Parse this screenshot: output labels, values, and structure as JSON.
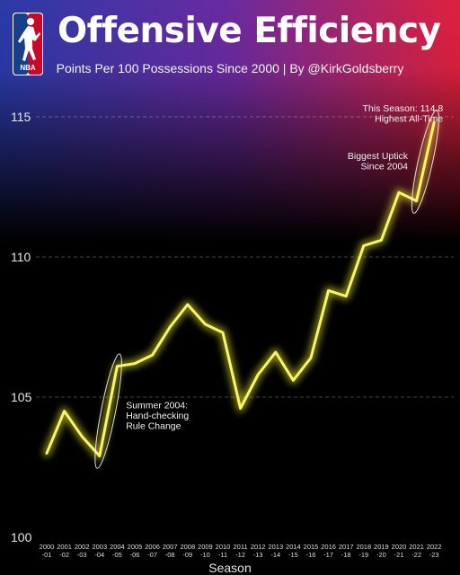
{
  "header": {
    "logo_text": "NBA",
    "title": "Offensive Efficiency",
    "subtitle": "Points Per 100 Possessions Since 2000 | By @KirkGoldsberry"
  },
  "colors": {
    "line": "#f7f56a",
    "glow": "#ecea2c",
    "gradient_left": "#2a3aa8",
    "gradient_mid": "#6a2aa0",
    "gradient_right": "#e0203c",
    "logo_blue": "#17408b",
    "logo_red": "#c9082a"
  },
  "chart_data": {
    "type": "line",
    "xlabel": "Season",
    "ylabel": "",
    "ylim": [
      100,
      115.5
    ],
    "yticks": [
      100,
      105,
      110,
      115
    ],
    "grid": "dashed horizontal at 105, 110, 115",
    "categories": [
      [
        "2000",
        "-01"
      ],
      [
        "2001",
        "-02"
      ],
      [
        "2002",
        "-03"
      ],
      [
        "2003",
        "-04"
      ],
      [
        "2004",
        "-05"
      ],
      [
        "2005",
        "-06"
      ],
      [
        "2006",
        "-07"
      ],
      [
        "2007",
        "-08"
      ],
      [
        "2008",
        "-09"
      ],
      [
        "2009",
        "-10"
      ],
      [
        "2010",
        "-11"
      ],
      [
        "2011",
        "-12"
      ],
      [
        "2012",
        "-13"
      ],
      [
        "2013",
        "-14"
      ],
      [
        "2014",
        "-15"
      ],
      [
        "2015",
        "-16"
      ],
      [
        "2016",
        "-17"
      ],
      [
        "2017",
        "-18"
      ],
      [
        "2018",
        "-19"
      ],
      [
        "2019",
        "-20"
      ],
      [
        "2020",
        "-21"
      ],
      [
        "2021",
        "-22"
      ],
      [
        "2022",
        "-23"
      ]
    ],
    "values": [
      103.0,
      104.5,
      103.6,
      102.9,
      106.1,
      106.2,
      106.5,
      107.5,
      108.3,
      107.6,
      107.3,
      104.6,
      105.8,
      106.6,
      105.6,
      106.4,
      108.8,
      108.6,
      110.4,
      110.6,
      112.3,
      112.0,
      114.8
    ],
    "annotations": [
      {
        "lines": [
          "This Season: 114.8",
          "Highest All-Time"
        ],
        "align": "end",
        "at_index": 22,
        "y": 115.2
      },
      {
        "lines": [
          "Biggest Uptick",
          "Since 2004"
        ],
        "align": "end",
        "at_index": 20,
        "y": 113.5
      },
      {
        "lines": [
          "Summer 2004:",
          "Hand-checking",
          "Rule Change"
        ],
        "align": "start",
        "at_index": 4.5,
        "y": 104.6
      }
    ],
    "highlights": [
      {
        "from_index": 3,
        "to_index": 4
      },
      {
        "from_index": 21,
        "to_index": 22
      }
    ]
  }
}
